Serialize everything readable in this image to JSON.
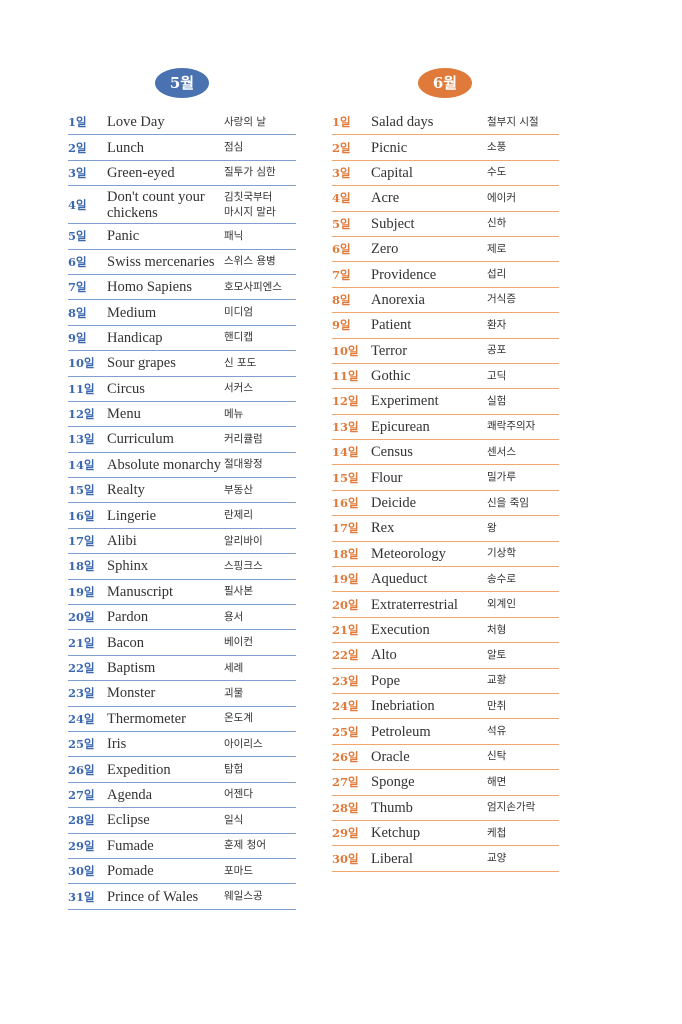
{
  "may": {
    "title": "5월",
    "entries": [
      {
        "day": "1일",
        "word": "Love Day",
        "ko": "사랑의 날"
      },
      {
        "day": "2일",
        "word": "Lunch",
        "ko": "점심"
      },
      {
        "day": "3일",
        "word": "Green-eyed",
        "ko": "질투가 심한"
      },
      {
        "day": "4일",
        "word": "Don't count your\nchickens",
        "ko": "김칫국부터\n마시지 말라"
      },
      {
        "day": "5일",
        "word": "Panic",
        "ko": "패닉"
      },
      {
        "day": "6일",
        "word": "Swiss mercenaries",
        "ko": "스위스 용병"
      },
      {
        "day": "7일",
        "word": "Homo Sapiens",
        "ko": "호모사피엔스"
      },
      {
        "day": "8일",
        "word": "Medium",
        "ko": "미디엄"
      },
      {
        "day": "9일",
        "word": "Handicap",
        "ko": "핸디캡"
      },
      {
        "day": "10일",
        "word": "Sour grapes",
        "ko": "신 포도"
      },
      {
        "day": "11일",
        "word": "Circus",
        "ko": "서커스"
      },
      {
        "day": "12일",
        "word": "Menu",
        "ko": "메뉴"
      },
      {
        "day": "13일",
        "word": "Curriculum",
        "ko": "커리큘럼"
      },
      {
        "day": "14일",
        "word": "Absolute monarchy",
        "ko": "절대왕정"
      },
      {
        "day": "15일",
        "word": "Realty",
        "ko": "부동산"
      },
      {
        "day": "16일",
        "word": "Lingerie",
        "ko": "란제리"
      },
      {
        "day": "17일",
        "word": "Alibi",
        "ko": "알리바이"
      },
      {
        "day": "18일",
        "word": "Sphinx",
        "ko": "스핑크스"
      },
      {
        "day": "19일",
        "word": "Manuscript",
        "ko": "필사본"
      },
      {
        "day": "20일",
        "word": "Pardon",
        "ko": "용서"
      },
      {
        "day": "21일",
        "word": "Bacon",
        "ko": "베이컨"
      },
      {
        "day": "22일",
        "word": "Baptism",
        "ko": "세례"
      },
      {
        "day": "23일",
        "word": "Monster",
        "ko": "괴물"
      },
      {
        "day": "24일",
        "word": "Thermometer",
        "ko": "온도계"
      },
      {
        "day": "25일",
        "word": "Iris",
        "ko": "아이리스"
      },
      {
        "day": "26일",
        "word": "Expedition",
        "ko": "탐험"
      },
      {
        "day": "27일",
        "word": "Agenda",
        "ko": "어젠다"
      },
      {
        "day": "28일",
        "word": "Eclipse",
        "ko": "일식"
      },
      {
        "day": "29일",
        "word": "Fumade",
        "ko": "훈제 청어"
      },
      {
        "day": "30일",
        "word": "Pomade",
        "ko": "포마드"
      },
      {
        "day": "31일",
        "word": "Prince of Wales",
        "ko": "웨일스공"
      }
    ]
  },
  "june": {
    "title": "6월",
    "entries": [
      {
        "day": "1일",
        "word": "Salad days",
        "ko": "철부지 시절"
      },
      {
        "day": "2일",
        "word": "Picnic",
        "ko": "소풍"
      },
      {
        "day": "3일",
        "word": "Capital",
        "ko": "수도"
      },
      {
        "day": "4일",
        "word": "Acre",
        "ko": "에이커"
      },
      {
        "day": "5일",
        "word": "Subject",
        "ko": "신하"
      },
      {
        "day": "6일",
        "word": "Zero",
        "ko": "제로"
      },
      {
        "day": "7일",
        "word": "Providence",
        "ko": "섭리"
      },
      {
        "day": "8일",
        "word": "Anorexia",
        "ko": "거식증"
      },
      {
        "day": "9일",
        "word": "Patient",
        "ko": "환자"
      },
      {
        "day": "10일",
        "word": "Terror",
        "ko": "공포"
      },
      {
        "day": "11일",
        "word": "Gothic",
        "ko": "고딕"
      },
      {
        "day": "12일",
        "word": "Experiment",
        "ko": "실험"
      },
      {
        "day": "13일",
        "word": "Epicurean",
        "ko": "쾌락주의자"
      },
      {
        "day": "14일",
        "word": "Census",
        "ko": "센서스"
      },
      {
        "day": "15일",
        "word": "Flour",
        "ko": "밀가루"
      },
      {
        "day": "16일",
        "word": "Deicide",
        "ko": "신을 죽임"
      },
      {
        "day": "17일",
        "word": "Rex",
        "ko": "왕"
      },
      {
        "day": "18일",
        "word": "Meteorology",
        "ko": "기상학"
      },
      {
        "day": "19일",
        "word": "Aqueduct",
        "ko": "송수로"
      },
      {
        "day": "20일",
        "word": "Extraterrestrial",
        "ko": "외계인"
      },
      {
        "day": "21일",
        "word": "Execution",
        "ko": "처형"
      },
      {
        "day": "22일",
        "word": "Alto",
        "ko": "알토"
      },
      {
        "day": "23일",
        "word": "Pope",
        "ko": "교황"
      },
      {
        "day": "24일",
        "word": "Inebriation",
        "ko": "만취"
      },
      {
        "day": "25일",
        "word": "Petroleum",
        "ko": "석유"
      },
      {
        "day": "26일",
        "word": "Oracle",
        "ko": "신탁"
      },
      {
        "day": "27일",
        "word": "Sponge",
        "ko": "해면"
      },
      {
        "day": "28일",
        "word": "Thumb",
        "ko": "엄지손가락"
      },
      {
        "day": "29일",
        "word": "Ketchup",
        "ko": "케첩"
      },
      {
        "day": "30일",
        "word": "Liberal",
        "ko": "교양"
      }
    ]
  }
}
